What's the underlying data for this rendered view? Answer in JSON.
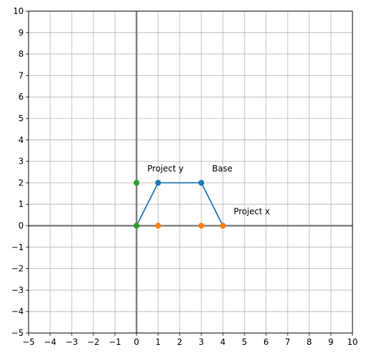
{
  "chart_data": {
    "type": "scatter",
    "xlim": [
      -5,
      10
    ],
    "ylim": [
      -5,
      10
    ],
    "xticks": [
      -5,
      -4,
      -3,
      -2,
      -1,
      0,
      1,
      2,
      3,
      4,
      5,
      6,
      7,
      8,
      9,
      10
    ],
    "yticks": [
      -5,
      -4,
      -3,
      -2,
      -1,
      0,
      1,
      2,
      3,
      4,
      5,
      6,
      7,
      8,
      9,
      10
    ],
    "xtick_labels": [
      "−5",
      "−4",
      "−3",
      "−2",
      "−1",
      "0",
      "1",
      "2",
      "3",
      "4",
      "5",
      "6",
      "7",
      "8",
      "9",
      "10"
    ],
    "ytick_labels": [
      "−5",
      "−4",
      "−3",
      "−2",
      "−1",
      "0",
      "1",
      "2",
      "3",
      "4",
      "5",
      "6",
      "7",
      "8",
      "9",
      "10"
    ],
    "grid": true,
    "axis_lines": {
      "x": 0,
      "y": 0,
      "color": "#808080"
    },
    "series": [
      {
        "color": "#1f77b4",
        "line": true,
        "x": [
          0,
          1,
          3,
          4
        ],
        "y": [
          0,
          2,
          2,
          0
        ]
      },
      {
        "color": "#ff7f0e",
        "line": false,
        "x": [
          0,
          1,
          3,
          4
        ],
        "y": [
          0,
          0,
          0,
          0
        ]
      },
      {
        "color": "#2ca02c",
        "line": false,
        "x": [
          0,
          0
        ],
        "y": [
          0,
          2
        ]
      }
    ],
    "annotations": [
      {
        "text": "Project y",
        "x": 0.5,
        "y": 2.5
      },
      {
        "text": "Base",
        "x": 3.5,
        "y": 2.5
      },
      {
        "text": "Project x",
        "x": 4.5,
        "y": 0.5
      }
    ]
  }
}
